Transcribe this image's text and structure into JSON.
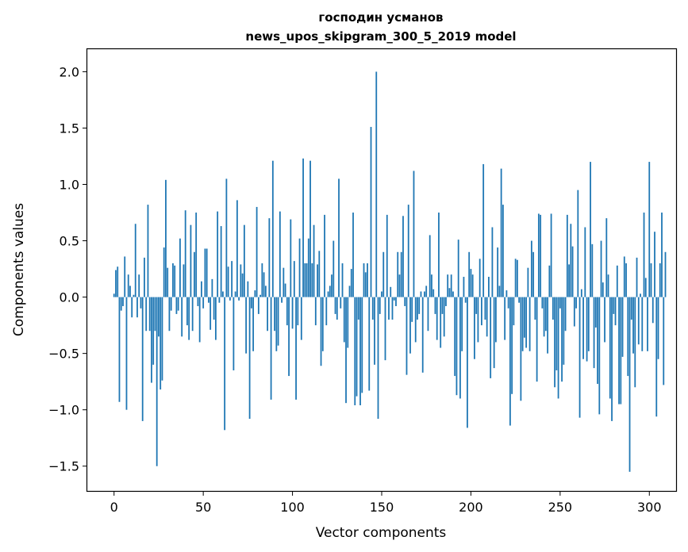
{
  "chart_data": {
    "type": "bar",
    "title_line1": "господин усманов",
    "title_line2": "news_upos_skipgram_300_5_2019 model",
    "xlabel": "Vector components",
    "ylabel": "Components values",
    "xlim": [
      -15,
      315
    ],
    "ylim": [
      -1.72,
      2.2
    ],
    "x_ticks": [
      0,
      50,
      100,
      150,
      200,
      250,
      300
    ],
    "x_tick_labels": [
      "0",
      "50",
      "100",
      "150",
      "200",
      "250",
      "300"
    ],
    "y_ticks": [
      -1.5,
      -1.0,
      -0.5,
      0.0,
      0.5,
      1.0,
      1.5,
      2.0
    ],
    "y_tick_labels": [
      "−1.5",
      "−1.0",
      "−0.5",
      "0.0",
      "0.5",
      "1.0",
      "1.5",
      "2.0"
    ],
    "bar_color": "#1f77b4",
    "values": [
      0.03,
      0.24,
      0.27,
      -0.93,
      -0.12,
      -0.08,
      0.36,
      -1.0,
      0.2,
      0.1,
      -0.18,
      0.02,
      0.65,
      -0.18,
      0.2,
      -0.1,
      -1.1,
      0.35,
      -0.3,
      0.82,
      -0.3,
      -0.76,
      -0.6,
      -0.3,
      -1.5,
      -0.35,
      -0.82,
      -0.74,
      0.44,
      1.04,
      0.26,
      -0.3,
      -0.12,
      0.3,
      0.28,
      -0.15,
      -0.12,
      0.52,
      -0.35,
      0.29,
      0.77,
      -0.25,
      -0.38,
      0.64,
      -0.3,
      0.4,
      0.75,
      -0.08,
      -0.4,
      0.14,
      -0.1,
      0.43,
      0.43,
      -0.05,
      -0.29,
      0.16,
      -0.2,
      -0.38,
      0.76,
      -0.05,
      0.63,
      0.05,
      -1.18,
      1.05,
      0.27,
      -0.03,
      0.32,
      -0.65,
      0.05,
      0.86,
      -0.03,
      0.29,
      0.21,
      0.64,
      -0.5,
      0.14,
      -1.08,
      -0.1,
      -0.48,
      0.06,
      0.8,
      -0.15,
      0.02,
      0.3,
      0.22,
      0.1,
      -0.3,
      0.7,
      -0.91,
      1.21,
      -0.3,
      -0.48,
      -0.43,
      0.76,
      -0.05,
      0.26,
      0.12,
      -0.25,
      -0.7,
      0.69,
      -0.28,
      0.32,
      -0.91,
      -0.25,
      0.52,
      -0.38,
      1.23,
      0.3,
      0.3,
      0.52,
      1.21,
      0.3,
      0.64,
      -0.25,
      0.29,
      0.41,
      -0.61,
      -0.48,
      0.73,
      -0.25,
      0.05,
      0.1,
      0.2,
      0.5,
      -0.15,
      -0.2,
      1.05,
      -0.1,
      0.3,
      -0.4,
      -0.94,
      -0.45,
      0.1,
      0.25,
      0.75,
      -0.96,
      -0.88,
      -0.2,
      -0.96,
      -0.85,
      0.3,
      0.22,
      0.3,
      -0.83,
      1.51,
      -0.2,
      -0.6,
      2.0,
      -1.08,
      -0.15,
      0.05,
      0.4,
      -0.56,
      0.73,
      -0.2,
      0.09,
      -0.2,
      -0.03,
      -0.08,
      0.4,
      0.2,
      0.4,
      0.72,
      -0.08,
      -0.69,
      0.82,
      -0.5,
      -0.22,
      1.12,
      -0.4,
      -0.2,
      -0.15,
      0.05,
      -0.67,
      0.05,
      0.1,
      -0.3,
      0.55,
      0.2,
      0.07,
      -0.15,
      -0.38,
      0.75,
      -0.45,
      -0.15,
      -0.35,
      -0.08,
      0.2,
      0.08,
      0.2,
      0.05,
      -0.7,
      -0.87,
      0.51,
      -0.9,
      -0.48,
      0.18,
      -0.05,
      -1.16,
      0.4,
      0.25,
      0.2,
      -0.55,
      -0.15,
      -0.4,
      0.34,
      -0.25,
      1.18,
      -0.2,
      -0.35,
      0.18,
      -0.72,
      0.62,
      -0.63,
      -0.4,
      0.44,
      0.1,
      1.14,
      0.82,
      -0.38,
      0.06,
      -0.1,
      -1.14,
      -0.86,
      -0.25,
      0.34,
      0.33,
      -0.05,
      -0.92,
      -0.48,
      -0.36,
      -0.45,
      0.26,
      -0.48,
      0.5,
      0.4,
      -0.2,
      -0.75,
      0.74,
      0.73,
      -0.1,
      -0.35,
      -0.3,
      -0.5,
      0.28,
      0.74,
      -0.2,
      -0.8,
      -0.65,
      -0.9,
      -0.1,
      -0.75,
      -0.6,
      -0.3,
      0.73,
      0.29,
      0.65,
      0.45,
      -0.26,
      -0.1,
      0.95,
      -1.07,
      0.07,
      -0.55,
      0.62,
      -0.57,
      -0.48,
      1.2,
      0.47,
      -0.63,
      -0.27,
      -0.77,
      -1.04,
      0.5,
      0.13,
      -0.4,
      0.7,
      0.2,
      -0.9,
      -1.1,
      -0.15,
      -0.25,
      0.28,
      -0.95,
      -0.95,
      -0.53,
      0.36,
      0.3,
      -0.7,
      -1.55,
      -0.2,
      -0.5,
      -0.8,
      0.35,
      -0.42,
      0.03,
      -0.48,
      0.75,
      0.17,
      -0.48,
      1.2,
      0.3,
      -0.23,
      0.58,
      -1.06,
      -0.55,
      0.3,
      0.75,
      -0.78,
      0.4
    ]
  }
}
